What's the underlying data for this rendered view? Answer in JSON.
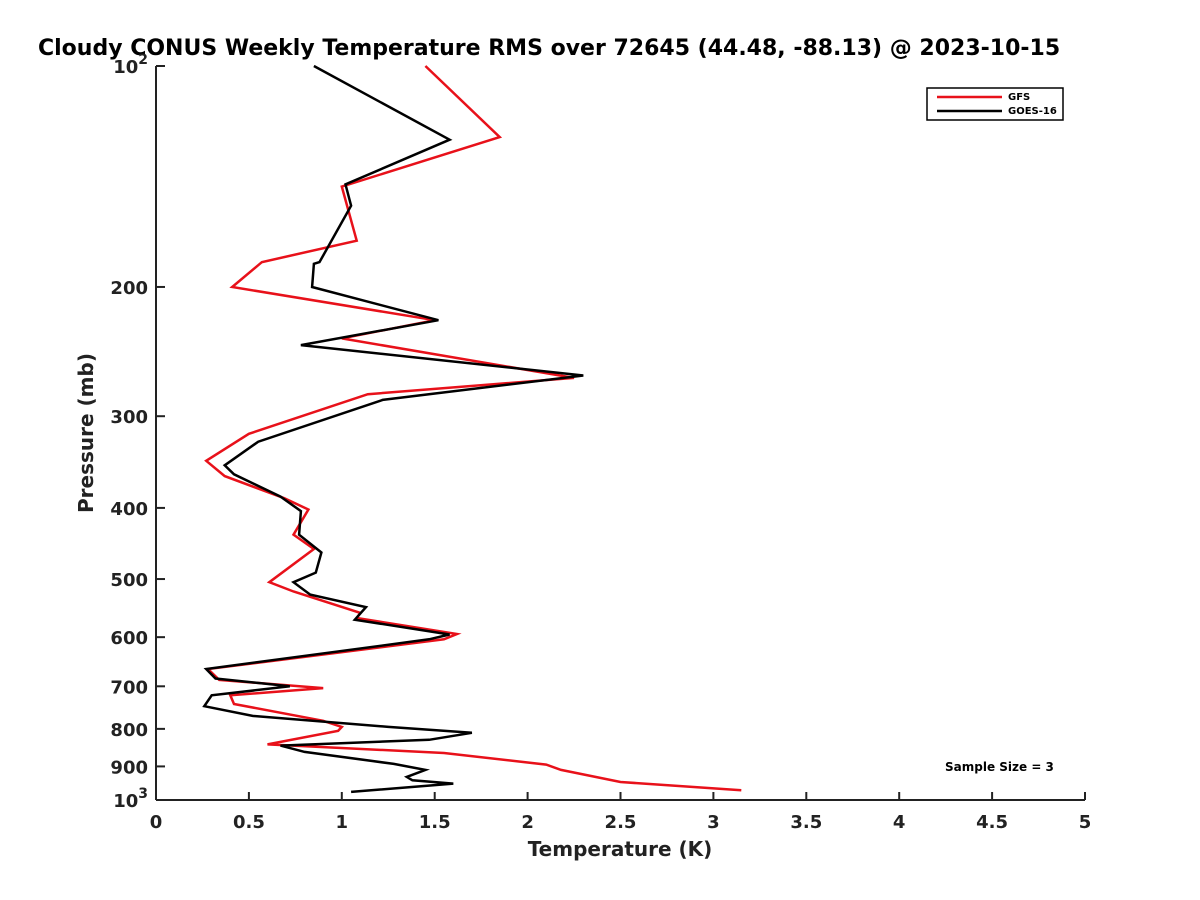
{
  "chart_data": {
    "type": "line",
    "title": "Cloudy CONUS Weekly Temperature RMS over 72645 (44.48, -88.13) @ 2023-10-15",
    "xlabel": "Temperature (K)",
    "ylabel": "Pressure (mb)",
    "xlim": [
      0,
      5
    ],
    "ylim": [
      100,
      1000
    ],
    "y_scale": "log",
    "y_reversed": true,
    "grid": false,
    "legend_position": "top-right",
    "x_ticks": [
      0,
      0.5,
      1,
      1.5,
      2,
      2.5,
      3,
      3.5,
      4,
      4.5,
      5
    ],
    "x_tick_labels": [
      "0",
      "0.5",
      "1",
      "1.5",
      "2",
      "2.5",
      "3",
      "3.5",
      "4",
      "4.5",
      "5"
    ],
    "y_ticks": [
      100,
      200,
      300,
      400,
      500,
      600,
      700,
      800,
      900,
      1000
    ],
    "y_tick_labels": [
      {
        "base": "10",
        "exp": "2"
      },
      {
        "base": "200"
      },
      {
        "base": "300"
      },
      {
        "base": "400"
      },
      {
        "base": "500"
      },
      {
        "base": "600"
      },
      {
        "base": "700"
      },
      {
        "base": "800"
      },
      {
        "base": "900"
      },
      {
        "base": "10",
        "exp": "3"
      }
    ],
    "annotation": "Sample Size = 3",
    "series": [
      {
        "name": "GFS",
        "color": "#e8111a",
        "x": [
          1.45,
          1.85,
          1.0,
          1.08,
          0.57,
          0.41,
          1.5,
          1.0,
          2.25,
          1.14,
          0.5,
          0.27,
          0.37,
          0.69,
          0.82,
          0.74,
          0.85,
          0.61,
          0.74,
          1.1,
          1.08,
          1.62,
          1.55,
          0.28,
          0.34,
          0.9,
          0.4,
          0.42,
          0.9,
          1.0,
          0.98,
          0.6,
          1.55,
          2.1,
          2.18,
          2.5,
          3.15
        ],
        "y": [
          100,
          125,
          146,
          173,
          185,
          200,
          222,
          235,
          266,
          280,
          317,
          345,
          362,
          388,
          402,
          435,
          455,
          505,
          520,
          556,
          565,
          594,
          604,
          663,
          686,
          704,
          720,
          740,
          780,
          795,
          805,
          840,
          863,
          895,
          910,
          945,
          970
        ]
      },
      {
        "name": "GOES-16",
        "color": "#000000",
        "x": [
          0.85,
          1.58,
          1.02,
          1.05,
          0.88,
          0.85,
          0.84,
          1.52,
          0.78,
          2.3,
          1.22,
          0.55,
          0.37,
          0.42,
          0.67,
          0.78,
          0.77,
          0.89,
          0.86,
          0.74,
          0.83,
          1.13,
          1.07,
          1.58,
          1.47,
          0.27,
          0.32,
          0.72,
          0.3,
          0.26,
          0.52,
          1.25,
          1.7,
          1.47,
          0.67,
          0.8,
          1.28,
          1.45,
          1.35,
          1.38,
          1.6,
          1.05
        ],
        "y": [
          100,
          126,
          145,
          155,
          185,
          186,
          200,
          222,
          240,
          264,
          285,
          325,
          350,
          360,
          386,
          404,
          435,
          460,
          490,
          505,
          525,
          546,
          568,
          595,
          604,
          663,
          683,
          700,
          720,
          745,
          768,
          795,
          810,
          828,
          843,
          860,
          893,
          910,
          930,
          940,
          950,
          975
        ]
      }
    ]
  }
}
